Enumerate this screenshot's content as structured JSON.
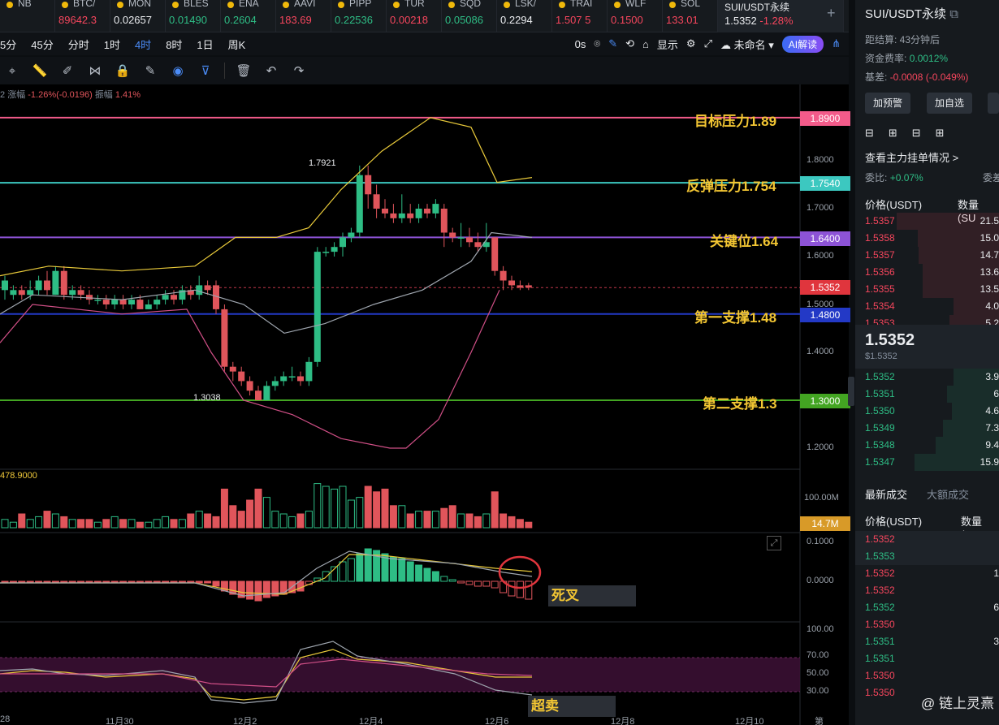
{
  "tickers": [
    {
      "name": "NB",
      "price": "",
      "color": "#f6465d"
    },
    {
      "name": "BTC/",
      "price": "89642.3",
      "color": "#f6465d"
    },
    {
      "name": "MON",
      "price": "0.02657",
      "color": "#eaecef"
    },
    {
      "name": "BLES",
      "price": "0.01490",
      "color": "#2ebd85"
    },
    {
      "name": "ENA",
      "price": "0.2604",
      "color": "#2ebd85"
    },
    {
      "name": "AAVI",
      "price": "183.69",
      "color": "#f6465d"
    },
    {
      "name": "PIPP",
      "price": "0.22536",
      "color": "#2ebd85"
    },
    {
      "name": "TUR",
      "price": "0.00218",
      "color": "#f6465d"
    },
    {
      "name": "SQD",
      "price": "0.05086",
      "color": "#2ebd85"
    },
    {
      "name": "LSK/",
      "price": "0.2294",
      "color": "#eaecef"
    },
    {
      "name": "TRAI",
      "price": "1.507 5",
      "color": "#f6465d"
    },
    {
      "name": "WLF",
      "price": "0.1500",
      "color": "#f6465d"
    },
    {
      "name": "SOL",
      "price": "133.01",
      "color": "#f6465d"
    }
  ],
  "active_ticker": {
    "name": "SUI/USDT永续",
    "price": "1.5352",
    "change": "-1.28%"
  },
  "timeframes": [
    "5分",
    "45分",
    "分时",
    "1时",
    "4时",
    "8时",
    "1日",
    "周K"
  ],
  "selected_timeframe": "4时",
  "toolbar_right": {
    "zero": "0s",
    "display": "显示",
    "layout": "未命名",
    "ai": "AI解读"
  },
  "indicator_line": {
    "prefix": "2",
    "change_label": "涨幅",
    "change": "-1.26%(-0.0196)",
    "amp_label": "振幅",
    "amp": "1.41%"
  },
  "volume_label": "478.9000",
  "y_axis": [
    "1.8000",
    "1.7000",
    "1.6000",
    "1.5000",
    "1.4000",
    "1.3000",
    "1.2000"
  ],
  "vol_axis": "100.00M",
  "vol_tag": "14.7M",
  "macd_axis": [
    "0.1000",
    "0.0000"
  ],
  "rsi_axis": [
    "100.00",
    "70.00",
    "50.00",
    "30.00"
  ],
  "x_axis": [
    "28",
    "11月30",
    "12月2",
    "12月4",
    "12月6",
    "12月8",
    "12月10",
    "第"
  ],
  "levels": [
    {
      "label": "目标压力1.89",
      "price": "1.8900",
      "color": "#f35b8a"
    },
    {
      "label": "反弹压力1.754",
      "price": "1.7540",
      "color": "#3cc8c0"
    },
    {
      "label": "关键位1.64",
      "price": "1.6400",
      "color": "#8d53d6"
    },
    {
      "label": "第一支撑1.48",
      "price": "1.4800",
      "color": "#2339c6"
    },
    {
      "label": "第二支撑1.3",
      "price": "1.3000",
      "color": "#43a522"
    }
  ],
  "current_price_tag": "1.5352",
  "high_label": "1.7921",
  "low_label": "1.3038",
  "notes": {
    "death_cross": "死叉",
    "oversold": "超卖"
  },
  "sidebar": {
    "title": "SUI/USDT永续",
    "settle": "距结算: 43分钟后",
    "funding_label": "资金费率:",
    "funding": "0.0012%",
    "basis_label": "基差:",
    "basis": "-0.0008 (-0.049%)",
    "btn_alert": "加预警",
    "btn_fav": "加自选",
    "mainforce": "查看主力挂单情况 >",
    "ratio_label": "委比:",
    "ratio": "+0.07%",
    "ratio_right": "委差",
    "price_hdr": "价格(USDT)",
    "qty_hdr": "数量 (SU",
    "asks": [
      {
        "p": "1.5357",
        "q": "21.5"
      },
      {
        "p": "1.5358",
        "q": "15.0"
      },
      {
        "p": "1.5357",
        "q": "14.7"
      },
      {
        "p": "1.5356",
        "q": "13.6"
      },
      {
        "p": "1.5355",
        "q": "13.5"
      },
      {
        "p": "1.5354",
        "q": "4.0"
      },
      {
        "p": "1.5353",
        "q": "5.2"
      }
    ],
    "mid_price": "1.5352",
    "mid_sub": "$1.5352",
    "bids": [
      {
        "p": "1.5352",
        "q": "3.9"
      },
      {
        "p": "1.5351",
        "q": "6"
      },
      {
        "p": "1.5350",
        "q": "4.6"
      },
      {
        "p": "1.5349",
        "q": "7.3"
      },
      {
        "p": "1.5348",
        "q": "9.4"
      },
      {
        "p": "1.5347",
        "q": "15.9"
      }
    ],
    "trades_tab": "最新成交",
    "big_trades_tab": "大额成交",
    "trades_price_hdr": "价格(USDT)",
    "trades_qty_hdr": "数量(SU",
    "trades": [
      {
        "p": "1.5352",
        "c": "r",
        "q": ""
      },
      {
        "p": "1.5353",
        "c": "g",
        "q": ""
      },
      {
        "p": "1.5352",
        "c": "r",
        "q": "1"
      },
      {
        "p": "1.5352",
        "c": "r",
        "q": ""
      },
      {
        "p": "1.5352",
        "c": "g",
        "q": "6"
      },
      {
        "p": "1.5350",
        "c": "r",
        "q": ""
      },
      {
        "p": "1.5351",
        "c": "g",
        "q": "3"
      },
      {
        "p": "1.5351",
        "c": "g",
        "q": ""
      },
      {
        "p": "1.5350",
        "c": "r",
        "q": ""
      },
      {
        "p": "1.5350",
        "c": "r",
        "q": ""
      }
    ],
    "watermark": "@ 链上灵熹"
  }
}
